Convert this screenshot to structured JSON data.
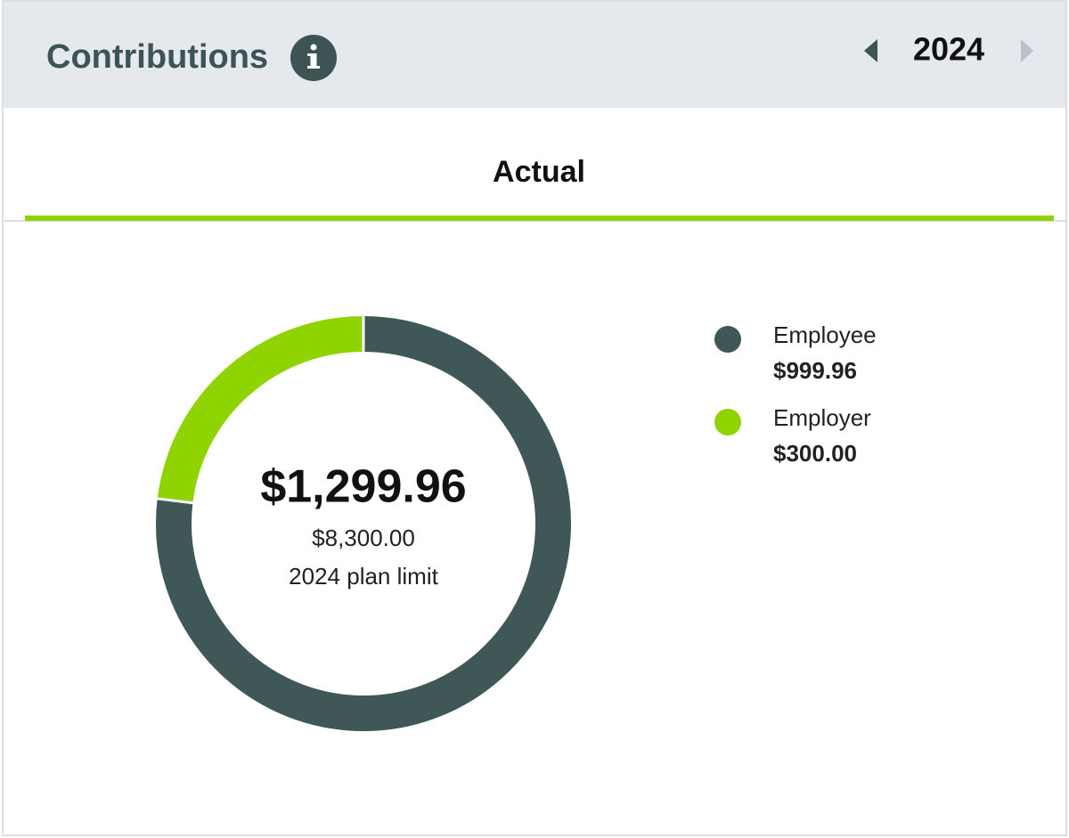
{
  "header": {
    "title": "Contributions",
    "year": "2024"
  },
  "tab": "Actual",
  "chart_data": {
    "type": "donut",
    "categories": [
      "Employee",
      "Employer"
    ],
    "values": [
      999.96,
      300.0
    ],
    "value_labels": [
      "$999.96",
      "$300.00"
    ],
    "colors": [
      "#3f5756",
      "#8fd400"
    ],
    "total": "$1,299.96",
    "limit": "$8,300.00",
    "limit_caption": "2024 plan limit"
  }
}
